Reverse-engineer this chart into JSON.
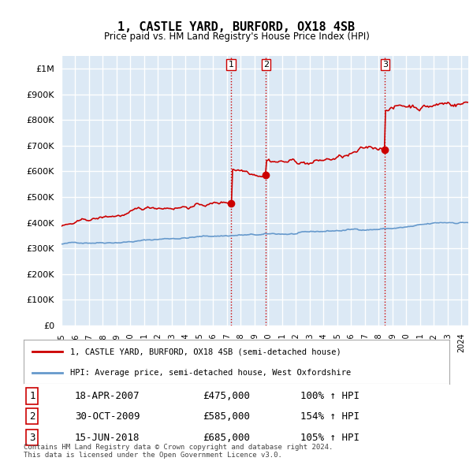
{
  "title": "1, CASTLE YARD, BURFORD, OX18 4SB",
  "subtitle": "Price paid vs. HM Land Registry's House Price Index (HPI)",
  "ylabel_ticks": [
    "£0",
    "£100K",
    "£200K",
    "£300K",
    "£400K",
    "£500K",
    "£600K",
    "£700K",
    "£800K",
    "£900K",
    "£1M"
  ],
  "ytick_values": [
    0,
    100000,
    200000,
    300000,
    400000,
    500000,
    600000,
    700000,
    800000,
    900000,
    1000000
  ],
  "ylim": [
    0,
    1050000
  ],
  "xlim_start": 1995.0,
  "xlim_end": 2024.5,
  "background_color": "#dce9f5",
  "plot_bg_color": "#dce9f5",
  "grid_color": "#ffffff",
  "sale_dates": [
    2007.3,
    2009.83,
    2018.46
  ],
  "sale_prices": [
    475000,
    585000,
    685000
  ],
  "sale_labels": [
    "1",
    "2",
    "3"
  ],
  "vline_color": "#cc0000",
  "vline_style": ":",
  "sale_marker_color": "#cc0000",
  "hpi_line_color": "#6699cc",
  "price_line_color": "#cc0000",
  "legend_entries": [
    "1, CASTLE YARD, BURFORD, OX18 4SB (semi-detached house)",
    "HPI: Average price, semi-detached house, West Oxfordshire"
  ],
  "table_data": [
    [
      "1",
      "18-APR-2007",
      "£475,000",
      "100% ↑ HPI"
    ],
    [
      "2",
      "30-OCT-2009",
      "£585,000",
      "154% ↑ HPI"
    ],
    [
      "3",
      "15-JUN-2018",
      "£685,000",
      "105% ↑ HPI"
    ]
  ],
  "footer_text": "Contains HM Land Registry data © Crown copyright and database right 2024.\nThis data is licensed under the Open Government Licence v3.0.",
  "xtick_years": [
    1995,
    1996,
    1997,
    1998,
    1999,
    2000,
    2001,
    2002,
    2003,
    2004,
    2005,
    2006,
    2007,
    2008,
    2009,
    2010,
    2011,
    2012,
    2013,
    2014,
    2015,
    2016,
    2017,
    2018,
    2019,
    2020,
    2021,
    2022,
    2023,
    2024
  ]
}
